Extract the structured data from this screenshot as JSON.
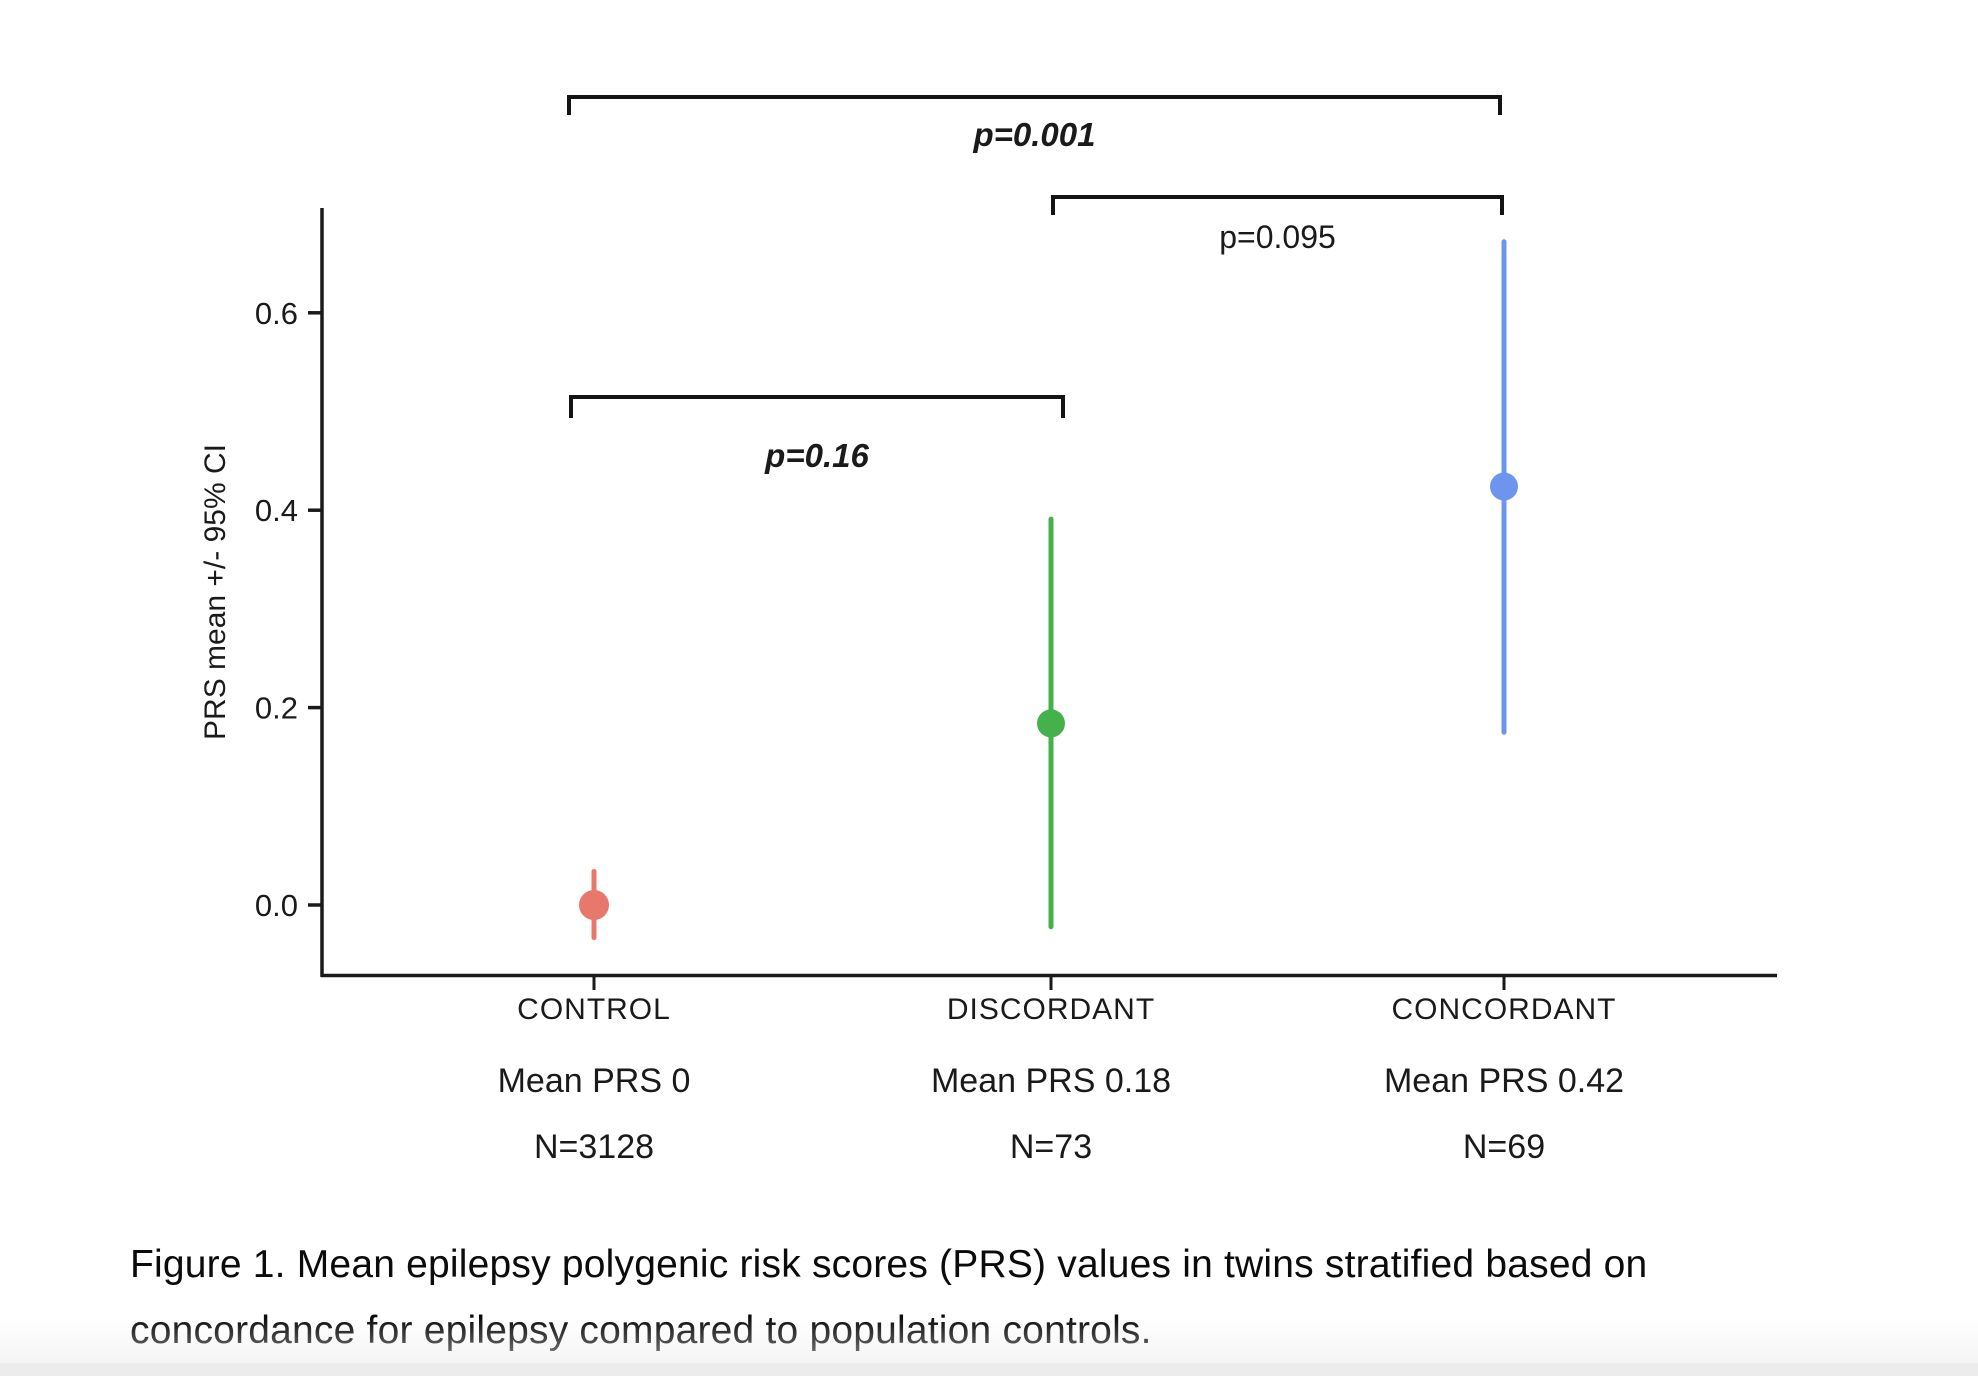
{
  "figure": {
    "caption": {
      "line1": "Figure 1. Mean epilepsy polygenic risk scores (PRS) values in twins stratified based on",
      "line2": "concordance for epilepsy compared to population controls."
    }
  },
  "chart_data": {
    "type": "scatter",
    "subtype": "point-with-95ci-errorbars",
    "title": "",
    "xlabel": "",
    "ylabel": "PRS mean +/- 95% CI",
    "ylim": [
      -0.07,
      0.71
    ],
    "yticks": [
      0.0,
      0.2,
      0.4,
      0.6
    ],
    "ytick_labels": [
      "0.0",
      "0.2",
      "0.4",
      "0.6"
    ],
    "grid": false,
    "legend": "none",
    "categories": [
      "CONTROL",
      "DISCORDANT",
      "CONCORDANT"
    ],
    "series": [
      {
        "name": "CONTROL",
        "mean": 0.0,
        "ci_low": -0.033,
        "ci_high": 0.034,
        "n": 3128,
        "mean_label": "Mean PRS 0",
        "n_label": "N=3128",
        "color": "#E8786C"
      },
      {
        "name": "DISCORDANT",
        "mean": 0.184,
        "ci_low": -0.022,
        "ci_high": 0.391,
        "n": 73,
        "mean_label": "Mean PRS 0.18",
        "n_label": "N=73",
        "color": "#45B14A"
      },
      {
        "name": "CONCORDANT",
        "mean": 0.424,
        "ci_low": 0.175,
        "ci_high": 0.672,
        "n": 69,
        "mean_label": "Mean PRS 0.42",
        "n_label": "N=69",
        "color": "#6D95EE"
      }
    ],
    "comparisons": [
      {
        "label": "p=0.001",
        "between": [
          "CONTROL",
          "CONCORDANT"
        ],
        "italic": true
      },
      {
        "label": "p=0.095",
        "between": [
          "DISCORDANT",
          "CONCORDANT"
        ],
        "italic": false
      },
      {
        "label": "p=0.16",
        "between": [
          "CONTROL",
          "DISCORDANT"
        ],
        "italic": true
      }
    ]
  }
}
